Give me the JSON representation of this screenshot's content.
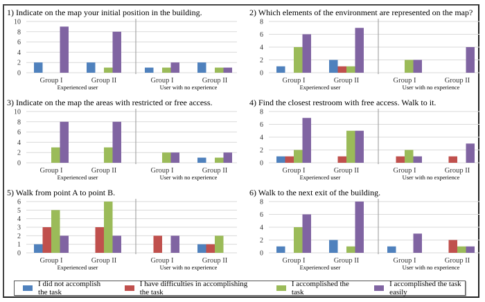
{
  "legend": [
    {
      "label": "I did not accomplish  the task",
      "color": "#4f81bd"
    },
    {
      "label": "I have difficulties  in accomplishing the task",
      "color": "#c0504d"
    },
    {
      "label": "I accomplished the task",
      "color": "#9bbb59"
    },
    {
      "label": "I accomplished the task easily",
      "color": "#8064a2"
    }
  ],
  "chart_data": [
    {
      "type": "bar",
      "title": "1)  Indicate on the map  your initial  position in the building.",
      "categories": [
        "Group I",
        "Group II",
        "Group I",
        "Group II"
      ],
      "category_groups": [
        {
          "label": "Experienced user",
          "span": [
            0,
            1
          ]
        },
        {
          "label": "User with no experience",
          "span": [
            2,
            3
          ]
        }
      ],
      "ylim": [
        0,
        10
      ],
      "yticks": [
        0,
        2,
        4,
        6,
        8,
        10
      ],
      "grid": true,
      "series": [
        {
          "name": "I did not accomplish  the task",
          "values": [
            2,
            2,
            1,
            2
          ]
        },
        {
          "name": "I have difficulties  in accomplishing the task",
          "values": [
            0,
            0,
            0,
            0
          ]
        },
        {
          "name": "I accomplished the task",
          "values": [
            0,
            1,
            1,
            1
          ]
        },
        {
          "name": "I accomplished the task easily",
          "values": [
            9,
            8,
            2,
            1
          ]
        }
      ]
    },
    {
      "type": "bar",
      "title": "2) Which elements of the environment are represented on the map?",
      "categories": [
        "Group I",
        "Group II",
        "Group I",
        "Group II"
      ],
      "category_groups": [
        {
          "label": "Experienced user",
          "span": [
            0,
            1
          ]
        },
        {
          "label": "User with no experience",
          "span": [
            2,
            3
          ]
        }
      ],
      "ylim": [
        0,
        8
      ],
      "yticks": [
        0,
        2,
        4,
        6,
        8
      ],
      "grid": true,
      "series": [
        {
          "name": "I did not accomplish  the task",
          "values": [
            1,
            2,
            0,
            0
          ]
        },
        {
          "name": "I have difficulties  in accomplishing the task",
          "values": [
            0,
            1,
            0,
            0
          ]
        },
        {
          "name": "I accomplished the task",
          "values": [
            4,
            1,
            2,
            0
          ]
        },
        {
          "name": "I accomplished the task easily",
          "values": [
            6,
            7,
            2,
            4
          ]
        }
      ]
    },
    {
      "type": "bar",
      "title": "3) Indicate  on the map  the areas with restricted or free access.",
      "categories": [
        "Group I",
        "Group II",
        "Group I",
        "Group II"
      ],
      "category_groups": [
        {
          "label": "Experienced user",
          "span": [
            0,
            1
          ]
        },
        {
          "label": "User with no experience",
          "span": [
            2,
            3
          ]
        }
      ],
      "ylim": [
        0,
        10
      ],
      "yticks": [
        0,
        2,
        4,
        6,
        8,
        10
      ],
      "grid": true,
      "series": [
        {
          "name": "I did not accomplish  the task",
          "values": [
            0,
            0,
            0,
            1
          ]
        },
        {
          "name": "I have difficulties  in accomplishing the task",
          "values": [
            0,
            0,
            0,
            0
          ]
        },
        {
          "name": "I accomplished the task",
          "values": [
            3,
            3,
            2,
            1
          ]
        },
        {
          "name": "I accomplished the task easily",
          "values": [
            8,
            8,
            2,
            2
          ]
        }
      ]
    },
    {
      "type": "bar",
      "title": "4) Find the closest restroom with free  access. Walk  to it.",
      "categories": [
        "Group I",
        "Group II",
        "Group I",
        "Group II"
      ],
      "category_groups": [
        {
          "label": "Experienced user",
          "span": [
            0,
            1
          ]
        },
        {
          "label": "User with no experience",
          "span": [
            2,
            3
          ]
        }
      ],
      "ylim": [
        0,
        8
      ],
      "yticks": [
        0,
        2,
        4,
        6,
        8
      ],
      "grid": true,
      "series": [
        {
          "name": "I did not accomplish  the task",
          "values": [
            1,
            0,
            0,
            0
          ]
        },
        {
          "name": "I have difficulties  in accomplishing the task",
          "values": [
            1,
            1,
            1,
            1
          ]
        },
        {
          "name": "I accomplished the task",
          "values": [
            2,
            5,
            2,
            0
          ]
        },
        {
          "name": "I accomplished the task easily",
          "values": [
            7,
            5,
            1,
            3
          ]
        }
      ]
    },
    {
      "type": "bar",
      "title": "5) Walk  from  point A to point  B.",
      "categories": [
        "Group I",
        "Group II",
        "Group I",
        "Group II"
      ],
      "category_groups": [
        {
          "label": "Experienced user",
          "span": [
            0,
            1
          ]
        },
        {
          "label": "User with no experience",
          "span": [
            2,
            3
          ]
        }
      ],
      "ylim": [
        0,
        6
      ],
      "yticks": [
        0,
        1,
        2,
        3,
        4,
        5,
        6
      ],
      "grid": true,
      "series": [
        {
          "name": "I did not accomplish  the task",
          "values": [
            1,
            0,
            0,
            1
          ]
        },
        {
          "name": "I have difficulties  in accomplishing the task",
          "values": [
            3,
            3,
            2,
            1
          ]
        },
        {
          "name": "I accomplished the task",
          "values": [
            5,
            6,
            0,
            2
          ]
        },
        {
          "name": "I accomplished the task easily",
          "values": [
            2,
            2,
            2,
            0
          ]
        }
      ]
    },
    {
      "type": "bar",
      "title": "6) Walk  to the next  exit  of the building.",
      "categories": [
        "Group I",
        "Group II",
        "Group I",
        "Group II"
      ],
      "category_groups": [
        {
          "label": "Experienced user",
          "span": [
            0,
            1
          ]
        },
        {
          "label": "User with no experience",
          "span": [
            2,
            3
          ]
        }
      ],
      "ylim": [
        0,
        8
      ],
      "yticks": [
        0,
        2,
        4,
        6,
        8
      ],
      "grid": true,
      "series": [
        {
          "name": "I did not accomplish  the task",
          "values": [
            1,
            2,
            1,
            0
          ]
        },
        {
          "name": "I have difficulties  in accomplishing the task",
          "values": [
            0,
            0,
            0,
            2
          ]
        },
        {
          "name": "I accomplished the task",
          "values": [
            4,
            1,
            0,
            1
          ]
        },
        {
          "name": "I accomplished the task easily",
          "values": [
            6,
            8,
            3,
            1
          ]
        }
      ]
    }
  ]
}
